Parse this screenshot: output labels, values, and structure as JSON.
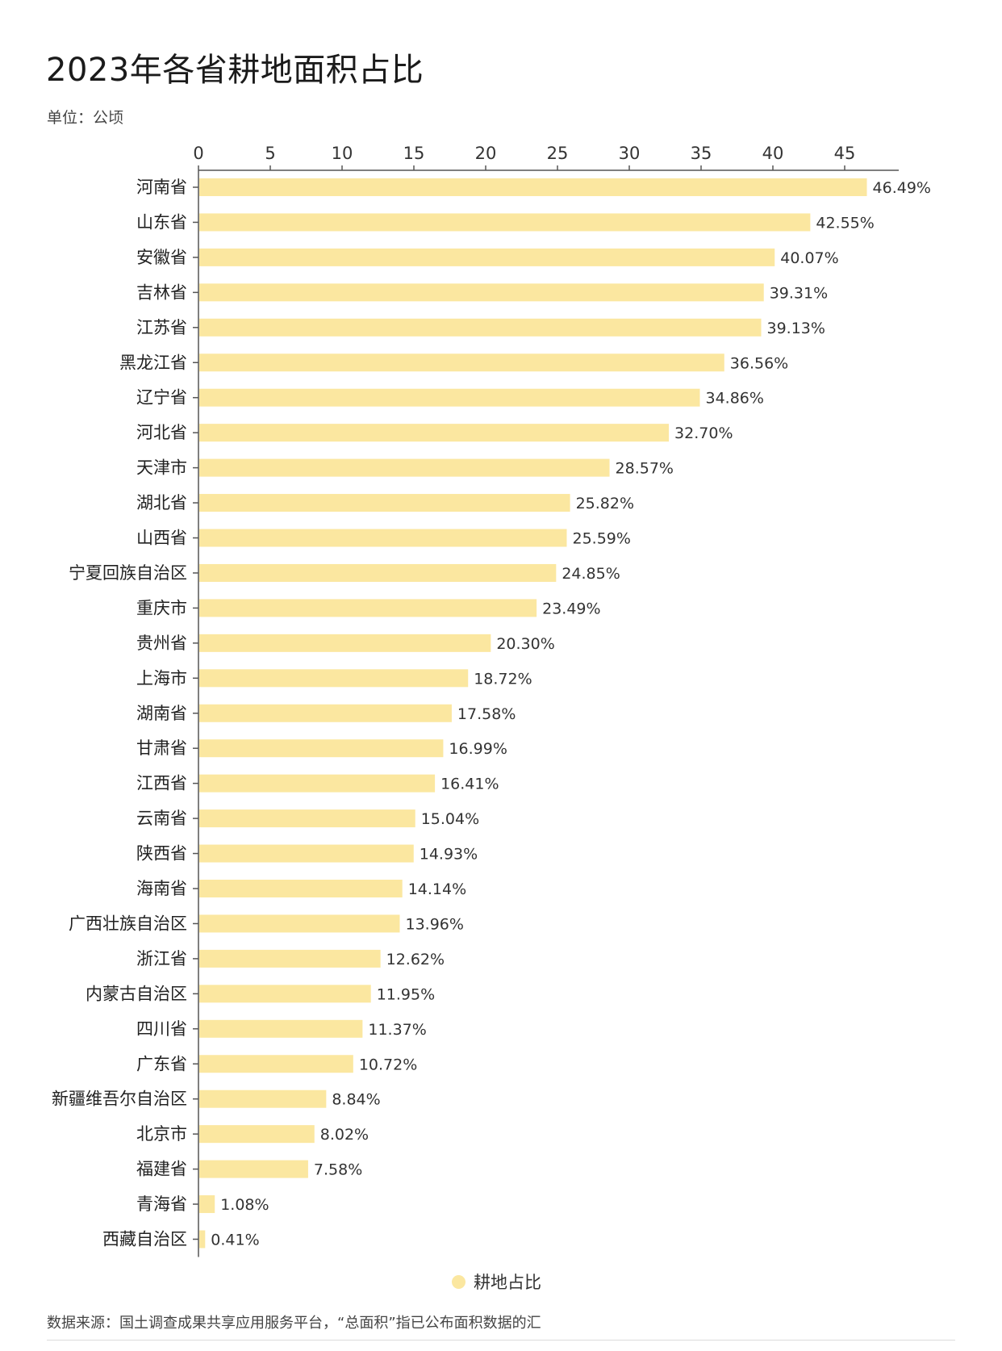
{
  "title": "2023年各省耕地面积占比",
  "unit_label": "单位：公顷",
  "source_note": "数据来源：国土调查成果共享应用服务平台，“总面积”指已公布面积数据的汇",
  "colors": {
    "bar": "#FBE7A0",
    "axis": "#555555",
    "text": "#222222"
  },
  "chart_data": {
    "type": "bar",
    "orientation": "horizontal",
    "xlim": [
      0,
      48
    ],
    "x_ticks": [
      0,
      5,
      10,
      15,
      20,
      25,
      30,
      35,
      40,
      45
    ],
    "x_axis_position": "top",
    "grid": false,
    "legend_position": "bottom-center",
    "categories": [
      "河南省",
      "山东省",
      "安徽省",
      "吉林省",
      "江苏省",
      "黑龙江省",
      "辽宁省",
      "河北省",
      "天津市",
      "湖北省",
      "山西省",
      "宁夏回族自治区",
      "重庆市",
      "贵州省",
      "上海市",
      "湖南省",
      "甘肃省",
      "江西省",
      "云南省",
      "陕西省",
      "海南省",
      "广西壮族自治区",
      "浙江省",
      "内蒙古自治区",
      "四川省",
      "广东省",
      "新疆维吾尔自治区",
      "北京市",
      "福建省",
      "青海省",
      "西藏自治区"
    ],
    "series": [
      {
        "name": "耕地占比",
        "values": [
          46.49,
          42.55,
          40.07,
          39.31,
          39.13,
          36.56,
          34.86,
          32.7,
          28.57,
          25.82,
          25.59,
          24.85,
          23.49,
          20.3,
          18.72,
          17.58,
          16.99,
          16.41,
          15.04,
          14.93,
          14.14,
          13.96,
          12.62,
          11.95,
          11.37,
          10.72,
          8.84,
          8.02,
          7.58,
          1.08,
          0.41
        ],
        "labels": [
          "46.49%",
          "42.55%",
          "40.07%",
          "39.31%",
          "39.13%",
          "36.56%",
          "34.86%",
          "32.70%",
          "28.57%",
          "25.82%",
          "25.59%",
          "24.85%",
          "23.49%",
          "20.30%",
          "18.72%",
          "17.58%",
          "16.99%",
          "16.41%",
          "15.04%",
          "14.93%",
          "14.14%",
          "13.96%",
          "12.62%",
          "11.95%",
          "11.37%",
          "10.72%",
          "8.84%",
          "8.02%",
          "7.58%",
          "1.08%",
          "0.41%"
        ]
      }
    ]
  }
}
